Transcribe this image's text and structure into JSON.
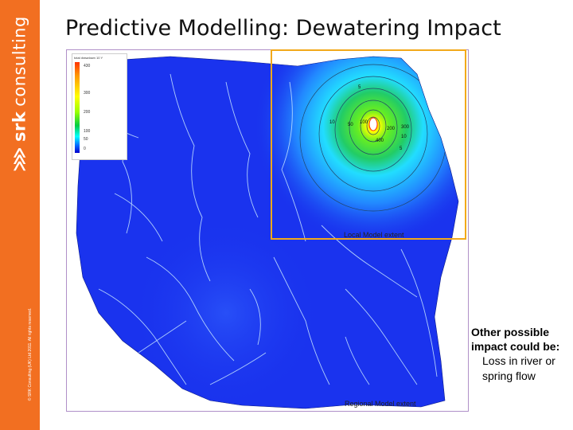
{
  "slide": {
    "title": "Predictive Modelling: Dewatering Impact"
  },
  "branding": {
    "logo_mark": "⋙",
    "srk": "srk",
    "consulting": "consulting",
    "copyright": "© SRK Consulting (UK) Ltd 2011. All rights reserved."
  },
  "map": {
    "legend_title": "total drawdown 10 Y",
    "legend_ticks": [
      "430",
      "300",
      "200",
      "100",
      "50",
      "0"
    ],
    "local_label": "Local Model extent",
    "regional_label": "Regional Model extent",
    "contour_labels": [
      "5",
      "10",
      "50",
      "100",
      "200",
      "300",
      "400",
      "5",
      "10"
    ],
    "colors": {
      "frame": "#b090c8",
      "local_box": "#f2a91a",
      "map_base": "#1a33ee",
      "rivers": "#c8e8ff",
      "sidebar": "#f26f21"
    }
  },
  "note": {
    "heading": "Other possible impact could be:",
    "item": "Loss in river or spring flow"
  }
}
